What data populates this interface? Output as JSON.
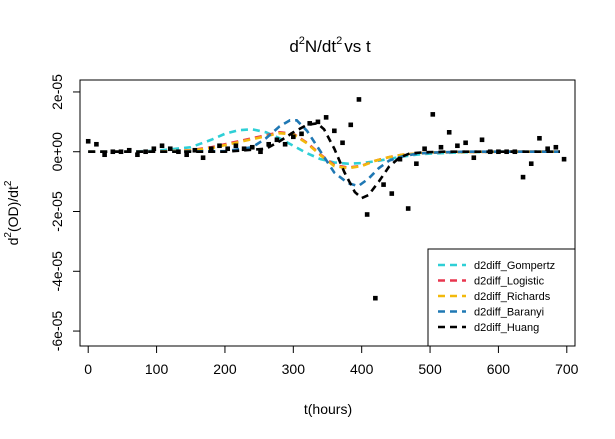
{
  "chart_data": {
    "type": "scatter",
    "title": {
      "base": "d",
      "sup1": "2",
      "mid": "N/dt",
      "sup2": "2",
      "tail": "vs t"
    },
    "xlabel": "t(hours)",
    "ylabel": {
      "base": "d",
      "sup1": "2",
      "mid": "(OD)/dt",
      "sup2": "2"
    },
    "xlim": [
      -12,
      712
    ],
    "ylim": [
      -6.5e-05,
      2.4e-05
    ],
    "x_ticks": [
      0,
      100,
      200,
      300,
      400,
      500,
      600,
      700
    ],
    "x_tick_labels": [
      "0",
      "100",
      "200",
      "300",
      "400",
      "500",
      "600",
      "700"
    ],
    "y_ticks": [
      -6e-05,
      -4e-05,
      -2e-05,
      0,
      2e-05
    ],
    "y_tick_labels": [
      "-6e-05",
      "-4e-05",
      "-2e-05",
      "0e+00",
      "2e-05"
    ],
    "grid": false,
    "legend_position": "bottom-right",
    "points": {
      "color": "#000000",
      "data": [
        [
          0,
          3.5e-06
        ],
        [
          12,
          2.5e-06
        ],
        [
          24,
          -1e-06
        ],
        [
          36,
          0
        ],
        [
          48,
          0
        ],
        [
          60,
          5e-07
        ],
        [
          72,
          -1e-06
        ],
        [
          84,
          0
        ],
        [
          96,
          1e-06
        ],
        [
          108,
          2e-06
        ],
        [
          120,
          1e-06
        ],
        [
          132,
          0
        ],
        [
          144,
          -1e-06
        ],
        [
          156,
          5e-07
        ],
        [
          168,
          -2e-06
        ],
        [
          180,
          1e-06
        ],
        [
          192,
          2e-06
        ],
        [
          204,
          1e-06
        ],
        [
          216,
          2e-06
        ],
        [
          228,
          1e-06
        ],
        [
          240,
          1.5e-06
        ],
        [
          252,
          0
        ],
        [
          264,
          2.5e-06
        ],
        [
          276,
          4e-06
        ],
        [
          288,
          2.5e-06
        ],
        [
          300,
          5e-06
        ],
        [
          312,
          6e-06
        ],
        [
          324,
          9.5e-06
        ],
        [
          336,
          1e-05
        ],
        [
          348,
          1.15e-05
        ],
        [
          360,
          7e-06
        ],
        [
          372,
          3e-06
        ],
        [
          384,
          9e-06
        ],
        [
          396,
          1.75e-05
        ],
        [
          408,
          -2.1e-05
        ],
        [
          420,
          -4.9e-05
        ],
        [
          432,
          -1.1e-05
        ],
        [
          444,
          -1.4e-05
        ],
        [
          456,
          -2.5e-06
        ],
        [
          468,
          -1.9e-05
        ],
        [
          480,
          -4e-06
        ],
        [
          492,
          1e-06
        ],
        [
          504,
          1.25e-05
        ],
        [
          516,
          1.5e-06
        ],
        [
          528,
          6.5e-06
        ],
        [
          540,
          2e-06
        ],
        [
          552,
          3e-06
        ],
        [
          564,
          -2e-06
        ],
        [
          576,
          4e-06
        ],
        [
          588,
          0
        ],
        [
          600,
          0
        ],
        [
          612,
          0
        ],
        [
          624,
          0
        ],
        [
          636,
          -8.5e-06
        ],
        [
          648,
          -4e-06
        ],
        [
          660,
          4.5e-06
        ],
        [
          672,
          1e-06
        ],
        [
          684,
          1.5e-06
        ],
        [
          696,
          -2.5e-06
        ]
      ]
    },
    "series": [
      {
        "name": "d2diff_Gompertz",
        "color": "#2ECFD6",
        "x": [
          0,
          50,
          100,
          150,
          180,
          200,
          220,
          240,
          260,
          280,
          300,
          320,
          340,
          360,
          380,
          400,
          420,
          440,
          460,
          480,
          500,
          550,
          600,
          650,
          690
        ],
        "y": [
          0,
          0,
          3e-07,
          1.5e-06,
          4e-06,
          6e-06,
          7.2e-06,
          7.5e-06,
          6.5e-06,
          4.5e-06,
          2e-06,
          -5e-07,
          -2.5e-06,
          -3.6e-06,
          -4e-06,
          -3.8e-06,
          -3.2e-06,
          -2.4e-06,
          -1.6e-06,
          -1e-06,
          -6e-07,
          -2e-07,
          0,
          0,
          0
        ]
      },
      {
        "name": "d2diff_Logistic",
        "color": "#E8364F",
        "x": [
          0,
          100,
          150,
          180,
          200,
          220,
          240,
          260,
          280,
          300,
          320,
          340,
          360,
          380,
          400,
          420,
          440,
          460,
          480,
          500,
          550,
          600,
          690
        ],
        "y": [
          0,
          0,
          5e-07,
          1.5e-06,
          2.5e-06,
          3.5e-06,
          4.5e-06,
          5.5e-06,
          6.5e-06,
          6e-06,
          3e-06,
          -1e-06,
          -4.5e-06,
          -5.3e-06,
          -4.7e-06,
          -3e-06,
          -1.8e-06,
          -1e-06,
          -6e-07,
          -3e-07,
          -1e-07,
          0,
          0
        ]
      },
      {
        "name": "d2diff_Richards",
        "color": "#F2B90C",
        "x": [
          0,
          100,
          150,
          180,
          200,
          220,
          240,
          260,
          280,
          300,
          320,
          340,
          360,
          380,
          400,
          420,
          440,
          460,
          480,
          500,
          550,
          600,
          690
        ],
        "y": [
          0,
          0,
          4e-07,
          1.2e-06,
          2.2e-06,
          3.2e-06,
          4.2e-06,
          5.2e-06,
          6.2e-06,
          5.8e-06,
          2.8e-06,
          -1.2e-06,
          -4.8e-06,
          -5.5e-06,
          -4.8e-06,
          -3e-06,
          -1.8e-06,
          -1e-06,
          -6e-07,
          -3e-07,
          -1e-07,
          0,
          0
        ]
      },
      {
        "name": "d2diff_Baranyi",
        "color": "#1F78B4",
        "x": [
          0,
          100,
          200,
          240,
          260,
          280,
          295,
          305,
          320,
          340,
          360,
          380,
          395,
          410,
          425,
          440,
          460,
          480,
          500,
          550,
          600,
          690
        ],
        "y": [
          0,
          0,
          2e-07,
          1.5e-06,
          4.5e-06,
          8.5e-06,
          1.05e-05,
          1.05e-05,
          7e-06,
          0,
          -7e-06,
          -1.05e-05,
          -1.15e-05,
          -9e-06,
          -5.5e-06,
          -3e-06,
          -1.5e-06,
          -7e-07,
          -3e-07,
          0,
          0,
          0
        ]
      },
      {
        "name": "d2diff_Huang",
        "color": "#000000",
        "x": [
          0,
          100,
          200,
          260,
          280,
          300,
          320,
          335,
          345,
          360,
          375,
          390,
          400,
          410,
          425,
          440,
          455,
          470,
          490,
          520,
          550,
          600,
          690
        ],
        "y": [
          0,
          0,
          0,
          1e-06,
          3.5e-06,
          6.5e-06,
          9e-06,
          9.5e-06,
          7.5e-06,
          1e-06,
          -7e-06,
          -1.35e-05,
          -1.55e-05,
          -1.45e-05,
          -1e-05,
          -5e-06,
          -2e-06,
          -6e-07,
          -2e-07,
          0,
          0,
          0,
          0
        ]
      }
    ]
  }
}
